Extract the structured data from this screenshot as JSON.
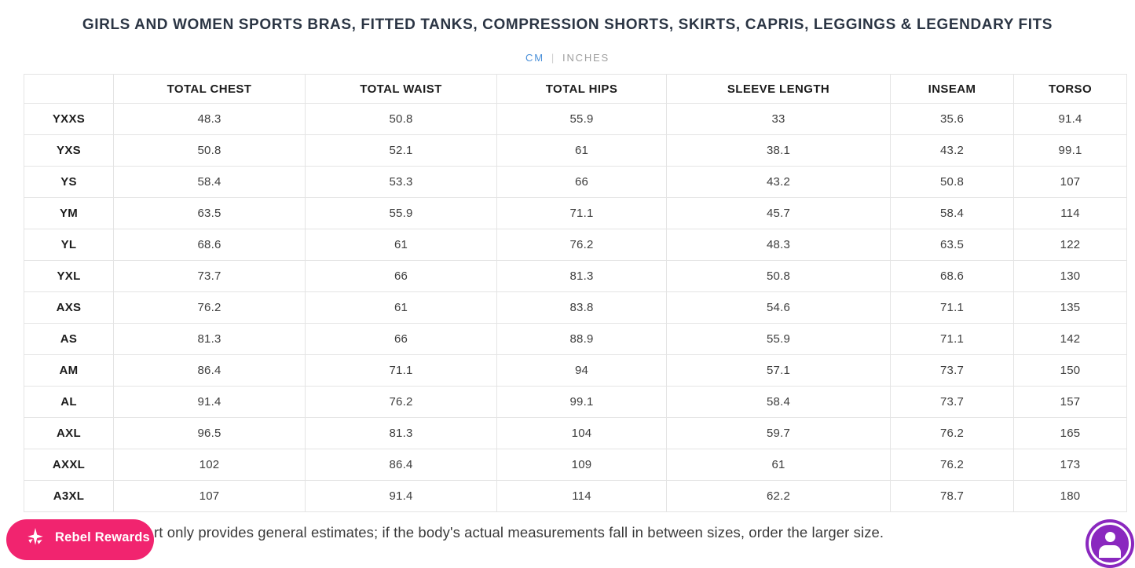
{
  "page": {
    "title": "GIRLS AND WOMEN SPORTS BRAS, FITTED TANKS, COMPRESSION SHORTS, SKIRTS, CAPRIS, LEGGINGS & LEGENDARY FITS",
    "note": "rt only provides general estimates; if the body's actual measurements fall in between sizes, order the larger size."
  },
  "unit_toggle": {
    "active_option": "CM",
    "divider": "|",
    "options": [
      {
        "label": "CM",
        "active": true
      },
      {
        "label": "INCHES",
        "active": false
      }
    ]
  },
  "table": {
    "columns": [
      "",
      "TOTAL CHEST",
      "TOTAL WAIST",
      "TOTAL HIPS",
      "SLEEVE LENGTH",
      "INSEAM",
      "TORSO"
    ],
    "rows": [
      {
        "size": "YXXS",
        "values": [
          "48.3",
          "50.8",
          "55.9",
          "33",
          "35.6",
          "91.4"
        ]
      },
      {
        "size": "YXS",
        "values": [
          "50.8",
          "52.1",
          "61",
          "38.1",
          "43.2",
          "99.1"
        ]
      },
      {
        "size": "YS",
        "values": [
          "58.4",
          "53.3",
          "66",
          "43.2",
          "50.8",
          "107"
        ]
      },
      {
        "size": "YM",
        "values": [
          "63.5",
          "55.9",
          "71.1",
          "45.7",
          "58.4",
          "114"
        ]
      },
      {
        "size": "YL",
        "values": [
          "68.6",
          "61",
          "76.2",
          "48.3",
          "63.5",
          "122"
        ]
      },
      {
        "size": "YXL",
        "values": [
          "73.7",
          "66",
          "81.3",
          "50.8",
          "68.6",
          "130"
        ]
      },
      {
        "size": "AXS",
        "values": [
          "76.2",
          "61",
          "83.8",
          "54.6",
          "71.1",
          "135"
        ]
      },
      {
        "size": "AS",
        "values": [
          "81.3",
          "66",
          "88.9",
          "55.9",
          "71.1",
          "142"
        ]
      },
      {
        "size": "AM",
        "values": [
          "86.4",
          "71.1",
          "94",
          "57.1",
          "73.7",
          "150"
        ]
      },
      {
        "size": "AL",
        "values": [
          "91.4",
          "76.2",
          "99.1",
          "58.4",
          "73.7",
          "157"
        ]
      },
      {
        "size": "AXL",
        "values": [
          "96.5",
          "81.3",
          "104",
          "59.7",
          "76.2",
          "165"
        ]
      },
      {
        "size": "AXXL",
        "values": [
          "102",
          "86.4",
          "109",
          "61",
          "76.2",
          "173"
        ]
      },
      {
        "size": "A3XL",
        "values": [
          "107",
          "91.4",
          "114",
          "62.2",
          "78.7",
          "180"
        ]
      }
    ]
  },
  "widgets": {
    "rewards": {
      "label": "Rebel Rewards",
      "icon": "sparkle-star-icon",
      "color": "#F1246F"
    },
    "accessibility": {
      "icon": "accessibility-person-icon",
      "color": "#8A28BF"
    }
  },
  "colors": {
    "title": "#2b3544",
    "unit_active": "#4A90D9",
    "unit_inactive": "#9E9E9E",
    "table_border": "#e4e4e4",
    "rewards_pink": "#F1246F",
    "accessibility_purple": "#8A28BF"
  }
}
